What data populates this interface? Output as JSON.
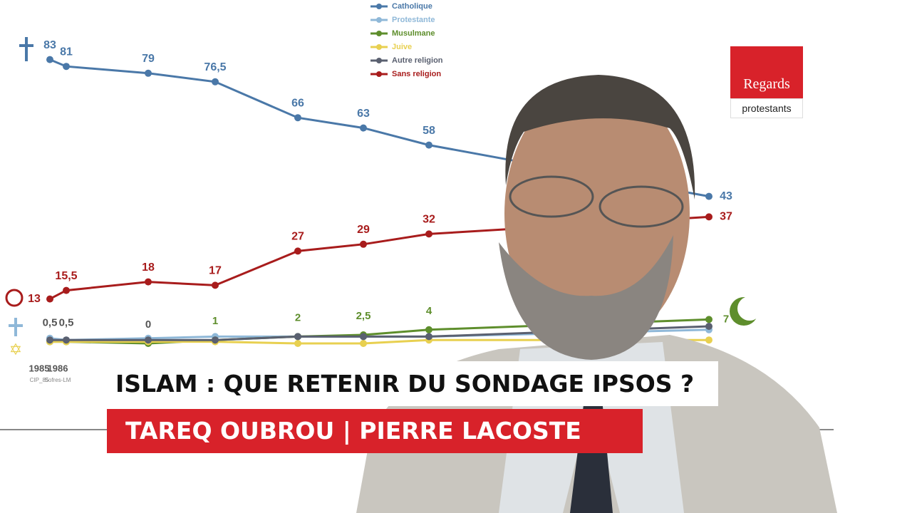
{
  "chart_data": {
    "type": "line",
    "categories": [
      "1985",
      "1986",
      null,
      null,
      null,
      null,
      null,
      null
    ],
    "sources": [
      "CIP_85",
      "Sofres-LM",
      null,
      null,
      null,
      null,
      null,
      null
    ],
    "series": [
      {
        "name": "Catholique",
        "color": "#4a78a8",
        "values": [
          83,
          81,
          79,
          76.5,
          66,
          63,
          58,
          43
        ],
        "value_labels": [
          "83",
          "81",
          "79",
          "76,5",
          "66",
          "63",
          "58",
          "43"
        ],
        "show_labels": true
      },
      {
        "name": "Protestante",
        "color": "#8fb8d8",
        "values": [
          1.5,
          1,
          1.5,
          2,
          2,
          2,
          2,
          4
        ],
        "show_labels": false
      },
      {
        "name": "Musulmane",
        "color": "#5e8e2c",
        "values": [
          0.5,
          0.5,
          0,
          1,
          2,
          2.5,
          4,
          7
        ],
        "value_labels": [
          "0,5",
          "0,5",
          "0",
          "1",
          "2",
          "2,5",
          "4",
          "7"
        ],
        "show_labels": true
      },
      {
        "name": "Juive",
        "color": "#e8d050",
        "values": [
          0.5,
          0.5,
          0.5,
          0.5,
          0,
          0,
          1,
          1
        ],
        "show_labels": false
      },
      {
        "name": "Autre religion",
        "color": "#5a6070",
        "values": [
          1,
          1,
          1,
          1,
          2,
          2,
          2,
          5
        ],
        "show_labels": false
      },
      {
        "name": "Sans religion",
        "color": "#a81c1c",
        "values": [
          13,
          15.5,
          18,
          17,
          27,
          29,
          32,
          37
        ],
        "value_labels": [
          "13",
          "15,5",
          "18",
          "17",
          "27",
          "29",
          "32",
          "37"
        ],
        "show_labels": true
      }
    ]
  },
  "headline": "ISLAM : QUE RETENIR DU SONDAGE IPSOS ?",
  "speakers": "TAREQ OUBROU | PIERRE LACOSTE",
  "logo": {
    "title": "Regards",
    "subtitle": "protestants"
  }
}
